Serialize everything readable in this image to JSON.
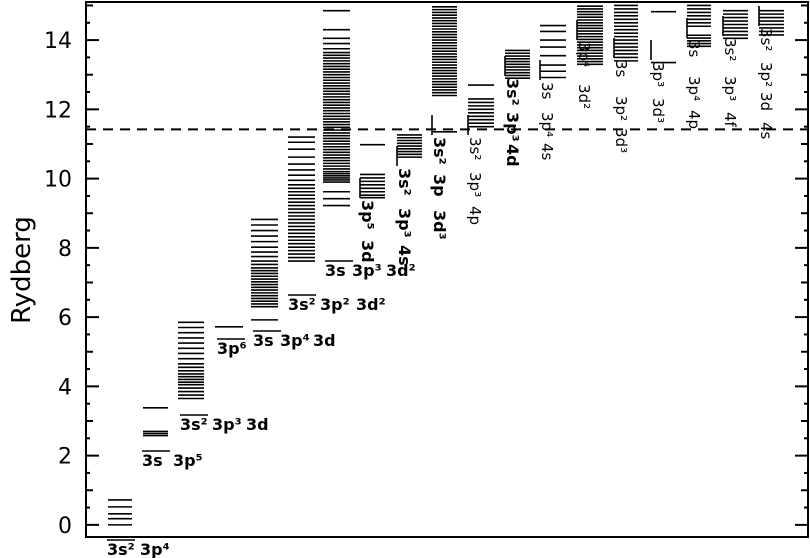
{
  "chart_data": {
    "type": "energy-level-diagram",
    "ylabel": "Rydberg",
    "ylim": [
      -0.35,
      15.1
    ],
    "yticks": [
      0,
      2,
      4,
      6,
      8,
      10,
      12,
      14
    ],
    "ionization_threshold": 11.42,
    "grid": false,
    "columns": [
      {
        "label": [
          "3s²",
          "3p⁴"
        ],
        "bold": true,
        "levels": [
          0,
          0.18,
          0.32,
          0.52,
          0.72
        ]
      },
      {
        "label": [
          "3s",
          "3p⁵"
        ],
        "bold": true,
        "levels": [
          2.58,
          2.64,
          2.7,
          3.38
        ]
      },
      {
        "label": [
          "3s²",
          "3p³",
          "3d"
        ],
        "bold": true,
        "levels": [
          3.65,
          3.75,
          3.85,
          3.95,
          4.05,
          4.12,
          4.2,
          4.28,
          4.36,
          4.45,
          4.55,
          4.65,
          4.8,
          4.95,
          5.1,
          5.25,
          5.4,
          5.55,
          5.7,
          5.85
        ]
      },
      {
        "label": [
          "3p⁶"
        ],
        "bold": true,
        "levels": [
          5.72
        ]
      },
      {
        "label": [
          "3s",
          "3p⁴",
          "3d"
        ],
        "bold": true,
        "levels": [
          5.92,
          6.3,
          6.38,
          6.46,
          6.54,
          6.62,
          6.7,
          6.78,
          6.86,
          6.94,
          7.02,
          7.1,
          7.18,
          7.26,
          7.34,
          7.42,
          7.52,
          7.62,
          7.75,
          7.88,
          8.02,
          8.18,
          8.34,
          8.5,
          8.66,
          8.82
        ]
      },
      {
        "label": [
          "3s²",
          "3p²",
          "3d²"
        ],
        "bold": true,
        "levels": [
          7.62,
          7.72,
          7.82,
          7.92,
          8.02,
          8.12,
          8.22,
          8.32,
          8.42,
          8.52,
          8.62,
          8.72,
          8.82,
          8.92,
          9.02,
          9.12,
          9.22,
          9.32,
          9.42,
          9.52,
          9.62,
          9.72,
          9.82,
          9.95,
          10.1,
          10.25,
          10.42,
          10.62,
          10.85,
          11.05,
          11.2
        ]
      },
      {
        "label": [
          "3s",
          "3p³",
          "3d²"
        ],
        "bold": true,
        "levels": [
          9.22,
          9.42,
          9.62,
          9.9,
          9.96,
          10.02,
          10.08,
          10.14,
          10.2,
          10.28,
          10.36,
          10.44,
          10.52,
          10.6,
          10.68,
          10.76,
          10.84,
          10.92,
          11.0,
          11.08,
          11.16,
          11.24,
          11.32,
          11.4,
          11.48,
          11.56,
          11.64,
          11.72,
          11.8,
          11.88,
          11.96,
          12.04,
          12.12,
          12.2,
          12.28,
          12.36,
          12.44,
          12.52,
          12.6,
          12.68,
          12.76,
          12.84,
          12.92,
          13.0,
          13.08,
          13.16,
          13.24,
          13.32,
          13.4,
          13.48,
          13.56,
          13.64,
          13.75,
          13.9,
          14.05,
          14.3,
          14.85
        ]
      },
      {
        "label": [
          "3p⁵",
          "3d"
        ],
        "bold": true,
        "levels": [
          9.45,
          9.52,
          9.62,
          9.72,
          9.82,
          9.92,
          10.02,
          10.12,
          10.98
        ]
      },
      {
        "label": [
          "3s²",
          "3p³",
          "4s"
        ],
        "bold": true,
        "levels": [
          10.62,
          10.7,
          10.78,
          10.86,
          10.94,
          11.02,
          11.1,
          11.18,
          11.26
        ]
      },
      {
        "label": [
          "3s²",
          "3p",
          "3d³"
        ],
        "bold": true,
        "levels": [
          11.35,
          12.4,
          12.48,
          12.56,
          12.64,
          12.72,
          12.8,
          12.88,
          12.96,
          13.04,
          13.12,
          13.2,
          13.28,
          13.36,
          13.44,
          13.52,
          13.6,
          13.68,
          13.76,
          13.84,
          13.92,
          14.0,
          14.08,
          14.16,
          14.24,
          14.32,
          14.4,
          14.48,
          14.56,
          14.64,
          14.72,
          14.8,
          14.88,
          14.96
        ]
      },
      {
        "label": [
          "3s²",
          "3p³",
          "4p"
        ],
        "bold": false,
        "levels": [
          11.5,
          11.6,
          11.7,
          11.8,
          11.9,
          12.0,
          12.1,
          12.2,
          12.3,
          12.7
        ]
      },
      {
        "label": [
          "3s²",
          "3p³",
          "4d"
        ],
        "bold": true,
        "levels": [
          12.9,
          12.98,
          13.06,
          13.14,
          13.22,
          13.3,
          13.38,
          13.46,
          13.54,
          13.62,
          13.7
        ]
      },
      {
        "label": [
          "3s",
          "3p⁴",
          "4s"
        ],
        "bold": false,
        "levels": [
          12.92,
          13.1,
          13.28,
          13.55,
          13.8,
          14.0,
          14.25,
          14.42
        ]
      },
      {
        "label": [
          "3p⁴",
          "3d²"
        ],
        "bold": false,
        "levels": [
          13.3,
          13.38,
          13.46,
          13.54,
          13.62,
          13.7,
          13.78,
          13.86,
          13.94,
          14.02,
          14.1,
          14.18,
          14.26,
          14.34,
          14.42,
          14.5,
          14.58,
          14.66,
          14.74,
          14.82,
          14.9,
          14.98
        ]
      },
      {
        "label": [
          "3s",
          "3p²",
          "3d³"
        ],
        "bold": false,
        "levels": [
          13.4,
          13.5,
          13.6,
          13.7,
          13.8,
          13.9,
          14.0,
          14.1,
          14.2,
          14.3,
          14.4,
          14.5,
          14.6,
          14.7,
          14.8,
          14.9,
          15.0
        ]
      },
      {
        "label": [
          "3p³",
          "3d³"
        ],
        "bold": false,
        "levels": [
          13.35,
          14.82
        ]
      },
      {
        "label": [
          "3s",
          "3p⁴",
          "4p"
        ],
        "bold": false,
        "levels": [
          13.82,
          13.9,
          13.98,
          14.06,
          14.14,
          14.4,
          14.5,
          14.6,
          14.7,
          14.8,
          14.9,
          15.0
        ]
      },
      {
        "label": [
          "3s²",
          "3p³",
          "4f"
        ],
        "bold": false,
        "levels": [
          14.05,
          14.15,
          14.25,
          14.35,
          14.45,
          14.55,
          14.65,
          14.75,
          14.85
        ]
      },
      {
        "label": [
          "3s²",
          "3p²",
          "3d",
          "4s"
        ],
        "bold": false,
        "levels": [
          14.15,
          14.25,
          14.35,
          14.45,
          14.55,
          14.65,
          14.75,
          14.85
        ]
      }
    ]
  }
}
